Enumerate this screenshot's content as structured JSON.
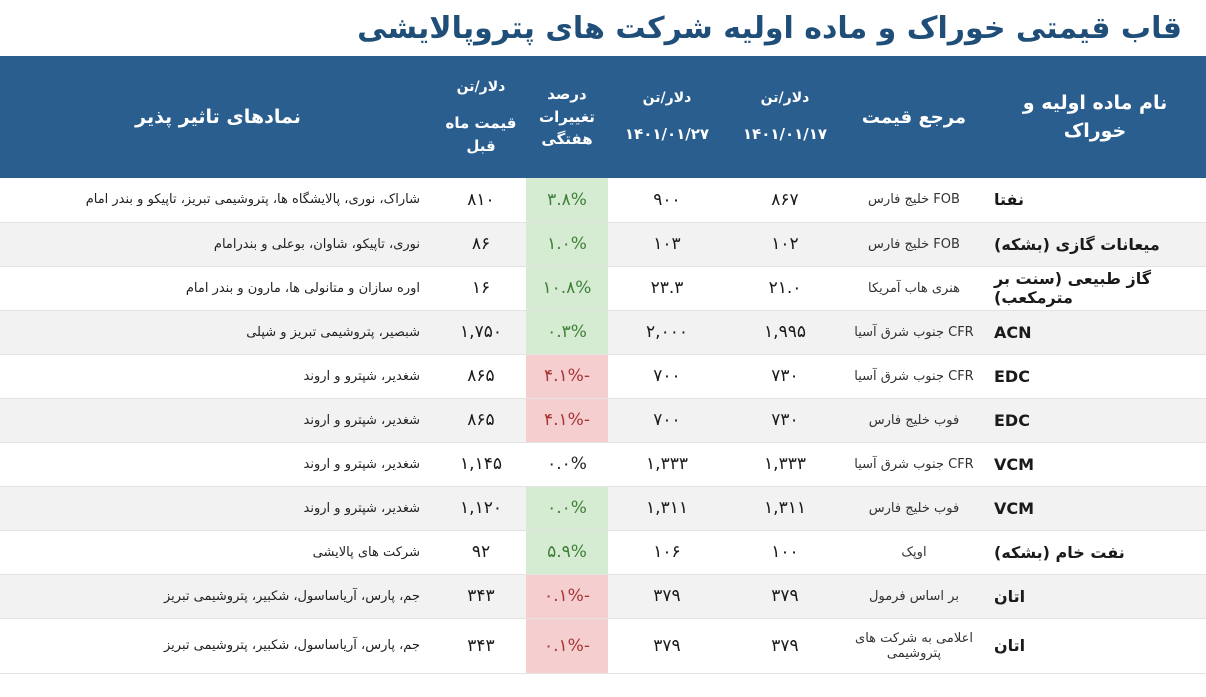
{
  "title": "قاب قیمتی خوراک و ماده اولیه شرکت های پتروپالایشی",
  "header": {
    "material": "نام ماده اولیه و خوراک",
    "ref": "مرجع  قیمت",
    "p1_unit": "دلار/تن",
    "p1_date": "۱۴۰۱/۰۱/۱۷",
    "p2_unit": "دلار/تن",
    "p2_date": "۱۴۰۱/۰۱/۲۷",
    "change": "درصد تغییرات هفتگی",
    "prev_unit": "دلار/تن",
    "prev_label": "قیمت ماه قبل",
    "symbols": "نمادهای تاثیر پذیر"
  },
  "rows": [
    {
      "material": "نفتا",
      "ref": "FOB  خلیج فارس",
      "p1": "۸۶۷",
      "p2": "۹۰۰",
      "change": "۳.۸%",
      "trend": "pos",
      "prev": "۸۱۰",
      "symbols": "شاراک، نوری، پالایشگاه ها، پتروشیمی تبریز، تاپیکو و بندر امام"
    },
    {
      "material": "میعانات گازی  (بشکه)",
      "ref": "FOB  خلیج فارس",
      "p1": "۱۰۲",
      "p2": "۱۰۳",
      "change": "۱.۰%",
      "trend": "pos",
      "prev": "۸۶",
      "symbols": "نوری، تاپیکو، شاوان، بوعلی و بندرامام"
    },
    {
      "material": "گاز طبیعی (سنت بر مترمکعب)",
      "ref": "هنری هاب آمریکا",
      "p1": "۲۱.۰",
      "p2": "۲۳.۳",
      "change": "۱۰.۸%",
      "trend": "pos",
      "prev": "۱۶",
      "symbols": "اوره سازان و متانولی ها، مارون و بندر امام"
    },
    {
      "material": "ACN",
      "ref": "CFR جنوب شرق آسیا",
      "p1": "۱,۹۹۵",
      "p2": "۲,۰۰۰",
      "change": "۰.۳%",
      "trend": "pos",
      "prev": "۱,۷۵۰",
      "symbols": "شبصیر، پتروشیمی تبریز و شپلی"
    },
    {
      "material": "EDC",
      "ref": "CFR جنوب شرق آسیا",
      "p1": "۷۳۰",
      "p2": "۷۰۰",
      "change": "-۴.۱%",
      "trend": "neg",
      "prev": "۸۶۵",
      "symbols": "شغدیر، شپترو و اروند"
    },
    {
      "material": "EDC",
      "ref": "فوب خلیج فارس",
      "p1": "۷۳۰",
      "p2": "۷۰۰",
      "change": "-۴.۱%",
      "trend": "neg",
      "prev": "۸۶۵",
      "symbols": "شغدیر، شپترو و اروند"
    },
    {
      "material": "VCM",
      "ref": "CFR جنوب شرق آسیا",
      "p1": "۱,۳۳۳",
      "p2": "۱,۳۳۳",
      "change": "۰.۰%",
      "trend": "zero",
      "prev": "۱,۱۴۵",
      "symbols": "شغدیر، شپترو و اروند"
    },
    {
      "material": "VCM",
      "ref": "فوب خلیج فارس",
      "p1": "۱,۳۱۱",
      "p2": "۱,۳۱۱",
      "change": "۰.۰%",
      "trend": "pos",
      "prev": "۱,۱۲۰",
      "symbols": "شغدیر، شپترو و اروند"
    },
    {
      "material": "نفت خام (بشکه)",
      "ref": "اوپک",
      "p1": "۱۰۰",
      "p2": "۱۰۶",
      "change": "۵.۹%",
      "trend": "pos",
      "prev": "۹۲",
      "symbols": "شرکت های پالایشی"
    },
    {
      "material": "اتان",
      "ref": "بر اساس فرمول",
      "p1": "۳۷۹",
      "p2": "۳۷۹",
      "change": "-۰.۱%",
      "trend": "neg",
      "prev": "۳۴۳",
      "symbols": "جم، پارس، آریاساسول، شکبیر، پتروشیمی تبریز"
    },
    {
      "material": "اتان",
      "ref": "اعلامی به شرکت های پتروشیمی",
      "p1": "۳۷۹",
      "p2": "۳۷۹",
      "change": "-۰.۱%",
      "trend": "neg",
      "prev": "۳۴۳",
      "symbols": "جم، پارس، آریاساسول، شکبیر، پتروشیمی تبریز"
    }
  ]
}
